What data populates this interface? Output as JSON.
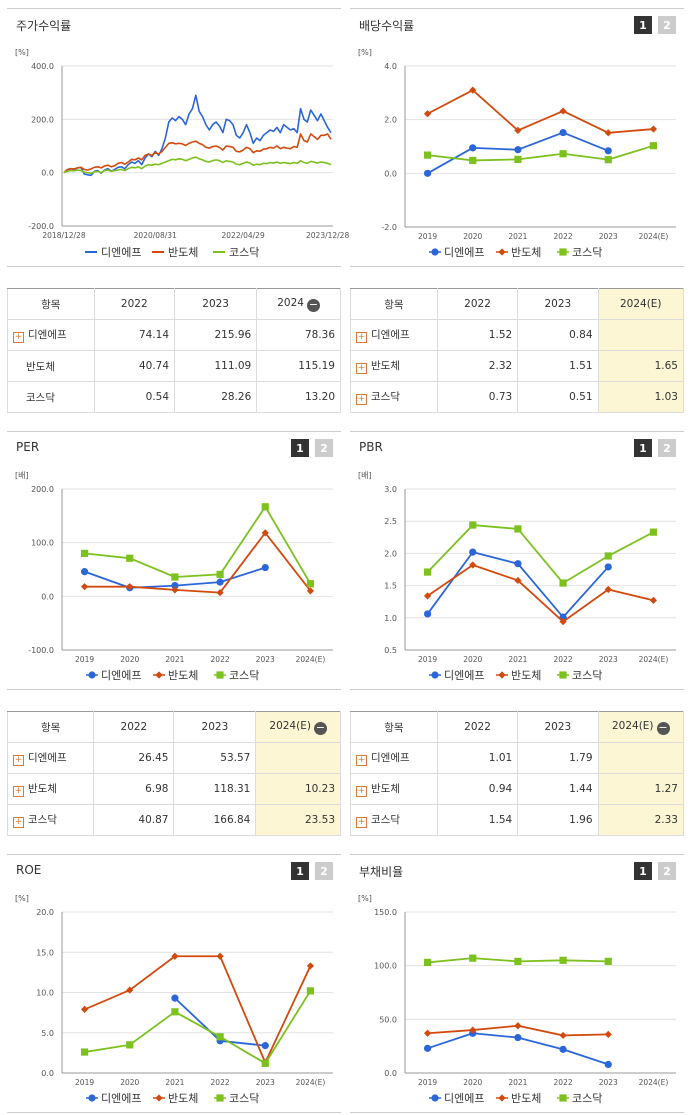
{
  "colors": {
    "series1": "#2b66d9",
    "series2": "#d24a0e",
    "series3": "#7cc11d"
  },
  "legend": [
    "디엔에프",
    "반도체",
    "코스닥"
  ],
  "panels": [
    {
      "title": "주가수익률",
      "pager": false
    },
    {
      "title": "배당수익률",
      "pager": true
    },
    {
      "title": "PER",
      "pager": true
    },
    {
      "title": "PBR",
      "pager": true
    },
    {
      "title": "ROE",
      "pager": true
    },
    {
      "title": "부채비율",
      "pager": true
    }
  ],
  "pager_labels": [
    "1",
    "2"
  ],
  "chart_data": [
    {
      "type": "line",
      "title": "주가수익률",
      "unit": "[%]",
      "ylim": [
        -200,
        400
      ],
      "yticks": [
        "400.0",
        "200.0",
        "0.0",
        "-200.0"
      ],
      "xticks": [
        "2018/12/28",
        "2020/08/31",
        "2022/04/29",
        "2023/12/28"
      ],
      "x_count": 80,
      "xtick_index": [
        0,
        27,
        53,
        78
      ],
      "series": [
        {
          "name": "디엔에프",
          "values": [
            0,
            10,
            15,
            12,
            18,
            20,
            -5,
            -8,
            -10,
            5,
            8,
            -2,
            10,
            15,
            5,
            12,
            20,
            22,
            15,
            30,
            40,
            35,
            45,
            30,
            55,
            70,
            60,
            80,
            65,
            90,
            130,
            190,
            205,
            195,
            210,
            200,
            180,
            220,
            240,
            290,
            230,
            210,
            180,
            160,
            180,
            190,
            175,
            150,
            200,
            195,
            180,
            140,
            130,
            150,
            180,
            150,
            110,
            130,
            120,
            140,
            150,
            160,
            155,
            170,
            150,
            180,
            170,
            160,
            165,
            150,
            240,
            200,
            190,
            235,
            215,
            195,
            220,
            195,
            170,
            150
          ]
        },
        {
          "name": "반도체",
          "values": [
            0,
            12,
            15,
            14,
            18,
            20,
            12,
            10,
            14,
            20,
            22,
            18,
            25,
            28,
            22,
            26,
            35,
            38,
            32,
            40,
            50,
            48,
            55,
            48,
            65,
            70,
            65,
            75,
            70,
            80,
            95,
            110,
            112,
            108,
            110,
            108,
            102,
            110,
            115,
            118,
            110,
            105,
            95,
            92,
            98,
            100,
            95,
            85,
            100,
            98,
            95,
            80,
            78,
            85,
            95,
            90,
            75,
            82,
            80,
            88,
            90,
            95,
            92,
            100,
            90,
            95,
            92,
            90,
            98,
            95,
            145,
            120,
            115,
            145,
            135,
            125,
            140,
            140,
            145,
            125
          ]
        },
        {
          "name": "코스닥",
          "values": [
            0,
            5,
            8,
            7,
            10,
            8,
            2,
            0,
            -2,
            3,
            5,
            0,
            8,
            10,
            5,
            8,
            10,
            12,
            8,
            15,
            20,
            18,
            22,
            15,
            25,
            30,
            28,
            32,
            30,
            35,
            40,
            45,
            50,
            48,
            52,
            50,
            45,
            50,
            55,
            58,
            52,
            48,
            42,
            40,
            45,
            48,
            45,
            38,
            45,
            42,
            40,
            32,
            30,
            35,
            40,
            36,
            28,
            32,
            30,
            35,
            34,
            38,
            36,
            40,
            35,
            38,
            36,
            34,
            38,
            35,
            45,
            38,
            35,
            42,
            40,
            36,
            40,
            38,
            35,
            30
          ]
        }
      ]
    },
    {
      "type": "line",
      "title": "배당수익률",
      "unit": "[%]",
      "ylim": [
        -2,
        4
      ],
      "yticks": [
        "4.0",
        "2.0",
        "0.0",
        "-2.0"
      ],
      "categories": [
        "2019",
        "2020",
        "2021",
        "2022",
        "2023",
        "2024(E)"
      ],
      "series": [
        {
          "name": "디엔에프",
          "values": [
            0.0,
            0.95,
            0.88,
            1.52,
            0.84,
            null
          ]
        },
        {
          "name": "반도체",
          "values": [
            2.22,
            3.1,
            1.6,
            2.32,
            1.51,
            1.65
          ]
        },
        {
          "name": "코스닥",
          "values": [
            0.68,
            0.48,
            0.52,
            0.73,
            0.51,
            1.03
          ]
        }
      ]
    },
    {
      "type": "line",
      "title": "PER",
      "unit": "[배]",
      "ylim": [
        -100,
        200
      ],
      "yticks": [
        "200.0",
        "100.0",
        "0.0",
        "-100.0"
      ],
      "categories": [
        "2019",
        "2020",
        "2021",
        "2022",
        "2023",
        "2024(E)"
      ],
      "series": [
        {
          "name": "디엔에프",
          "values": [
            46,
            16,
            20,
            26.45,
            53.57,
            null
          ]
        },
        {
          "name": "반도체",
          "values": [
            18,
            18,
            12,
            6.98,
            118.31,
            10.23
          ]
        },
        {
          "name": "코스닥",
          "values": [
            80,
            71,
            36,
            40.87,
            166.84,
            23.53
          ]
        }
      ]
    },
    {
      "type": "line",
      "title": "PBR",
      "unit": "[배]",
      "ylim": [
        0.5,
        3.0
      ],
      "yticks": [
        "3.0",
        "2.5",
        "2.0",
        "1.5",
        "1.0",
        "0.5"
      ],
      "categories": [
        "2019",
        "2020",
        "2021",
        "2022",
        "2023",
        "2024(E)"
      ],
      "series": [
        {
          "name": "디엔에프",
          "values": [
            1.06,
            2.02,
            1.84,
            1.01,
            1.79,
            null
          ]
        },
        {
          "name": "반도체",
          "values": [
            1.34,
            1.82,
            1.58,
            0.94,
            1.44,
            1.27
          ]
        },
        {
          "name": "코스닥",
          "values": [
            1.71,
            2.44,
            2.38,
            1.54,
            1.96,
            2.33
          ]
        }
      ]
    },
    {
      "type": "line",
      "title": "ROE",
      "unit": "[%]",
      "ylim": [
        0,
        20
      ],
      "yticks": [
        "20.0",
        "15.0",
        "10.0",
        "5.0",
        "0.0"
      ],
      "categories": [
        "2019",
        "2020",
        "2021",
        "2022",
        "2023",
        "2024(E)"
      ],
      "series": [
        {
          "name": "디엔에프",
          "values": [
            null,
            null,
            9.3,
            4.0,
            3.4,
            null
          ]
        },
        {
          "name": "반도체",
          "values": [
            7.9,
            10.3,
            14.5,
            14.5,
            1.3,
            13.3
          ]
        },
        {
          "name": "코스닥",
          "values": [
            2.6,
            3.5,
            7.6,
            4.5,
            1.2,
            10.2
          ]
        }
      ]
    },
    {
      "type": "line",
      "title": "부채비율",
      "unit": "[%]",
      "ylim": [
        0,
        150
      ],
      "yticks": [
        "150.0",
        "100.0",
        "50.0",
        "0.0"
      ],
      "categories": [
        "2019",
        "2020",
        "2021",
        "2022",
        "2023",
        "2024(E)"
      ],
      "series": [
        {
          "name": "디엔에프",
          "values": [
            23,
            37,
            33,
            22,
            8,
            null
          ]
        },
        {
          "name": "반도체",
          "values": [
            37,
            40,
            44,
            35,
            36,
            null
          ]
        },
        {
          "name": "코스닥",
          "values": [
            103,
            107,
            104,
            105,
            104,
            null
          ]
        }
      ]
    }
  ],
  "tables": [
    {
      "headers": [
        "항목",
        "2022",
        "2023",
        "2024"
      ],
      "minus": true,
      "highlight_last": false,
      "rows": [
        {
          "label": "디엔에프",
          "plus": true,
          "values": [
            "74.14",
            "215.96",
            "78.36"
          ]
        },
        {
          "label": "반도체",
          "plus": false,
          "values": [
            "40.74",
            "111.09",
            "115.19"
          ]
        },
        {
          "label": "코스닥",
          "plus": false,
          "values": [
            "0.54",
            "28.26",
            "13.20"
          ]
        }
      ]
    },
    {
      "headers": [
        "항목",
        "2022",
        "2023",
        "2024(E)"
      ],
      "minus": false,
      "highlight_last": true,
      "rows": [
        {
          "label": "디엔에프",
          "plus": true,
          "values": [
            "1.52",
            "0.84",
            ""
          ]
        },
        {
          "label": "반도체",
          "plus": true,
          "values": [
            "2.32",
            "1.51",
            "1.65"
          ]
        },
        {
          "label": "코스닥",
          "plus": true,
          "values": [
            "0.73",
            "0.51",
            "1.03"
          ]
        }
      ]
    },
    {
      "headers": [
        "항목",
        "2022",
        "2023",
        "2024(E)"
      ],
      "minus": true,
      "highlight_last": true,
      "rows": [
        {
          "label": "디엔에프",
          "plus": true,
          "values": [
            "26.45",
            "53.57",
            ""
          ]
        },
        {
          "label": "반도체",
          "plus": true,
          "values": [
            "6.98",
            "118.31",
            "10.23"
          ]
        },
        {
          "label": "코스닥",
          "plus": true,
          "values": [
            "40.87",
            "166.84",
            "23.53"
          ]
        }
      ]
    },
    {
      "headers": [
        "항목",
        "2022",
        "2023",
        "2024(E)"
      ],
      "minus": true,
      "highlight_last": true,
      "rows": [
        {
          "label": "디엔에프",
          "plus": true,
          "values": [
            "1.01",
            "1.79",
            ""
          ]
        },
        {
          "label": "반도체",
          "plus": true,
          "values": [
            "0.94",
            "1.44",
            "1.27"
          ]
        },
        {
          "label": "코스닥",
          "plus": true,
          "values": [
            "1.54",
            "1.96",
            "2.33"
          ]
        }
      ]
    }
  ]
}
